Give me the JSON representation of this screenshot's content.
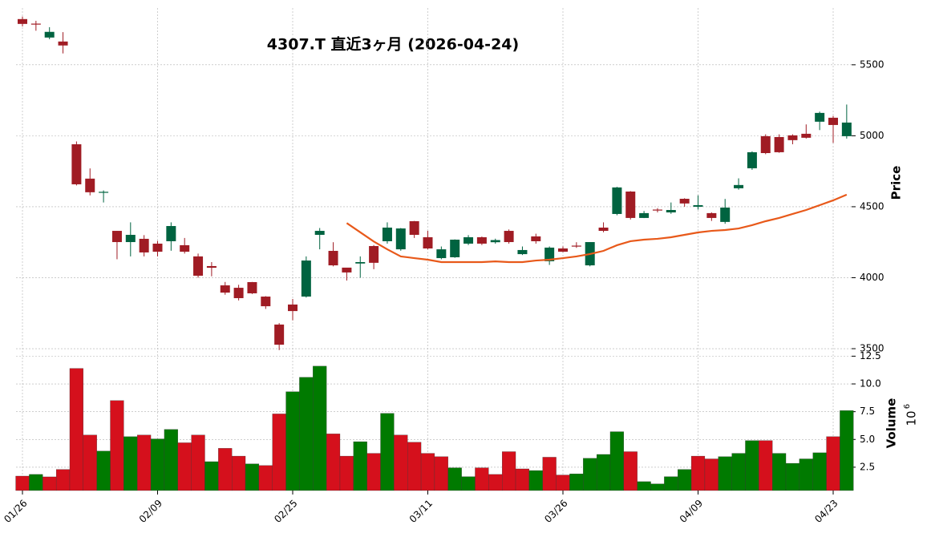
{
  "chart_data": {
    "type": "candlestick",
    "title": "4307.T  直近3ヶ月  (2026-04-24)",
    "y_label": "Price",
    "y2_label": "Volume",
    "y2_offset_base": "10",
    "y2_offset_exp": "6",
    "categories": [
      "01/26",
      null,
      null,
      null,
      null,
      null,
      null,
      null,
      null,
      null,
      "02/09",
      null,
      null,
      null,
      null,
      null,
      null,
      null,
      null,
      null,
      "02/25",
      null,
      null,
      null,
      null,
      null,
      null,
      null,
      null,
      null,
      "03/11",
      null,
      null,
      null,
      null,
      null,
      null,
      null,
      null,
      null,
      "03/26",
      null,
      null,
      null,
      null,
      null,
      null,
      null,
      null,
      null,
      "04/09",
      null,
      null,
      null,
      null,
      null,
      null,
      null,
      null,
      null,
      "04/23",
      null
    ],
    "open": [
      5822,
      5790,
      5692,
      5664,
      4940,
      4698,
      4600,
      4330,
      4251,
      4274,
      4240,
      4257,
      4229,
      4150,
      4082,
      3946,
      3929,
      3969,
      3867,
      3670,
      3811,
      3867,
      4302,
      4189,
      4071,
      4100,
      4223,
      4257,
      4200,
      4398,
      4285,
      4138,
      4144,
      4240,
      4285,
      4250,
      4330,
      4166,
      4291,
      4116,
      4206,
      4226,
      4087,
      4353,
      4449,
      4607,
      4421,
      4480,
      4460,
      4556,
      4500,
      4455,
      4393,
      4630,
      4771,
      4997,
      4991,
      5003,
      5014,
      5099,
      5127,
      4997
    ],
    "high": [
      5840,
      5810,
      5765,
      5730,
      4960,
      4770,
      4615,
      4330,
      4390,
      4300,
      4260,
      4390,
      4280,
      4170,
      4110,
      3970,
      3950,
      3970,
      3870,
      3680,
      3850,
      4150,
      4350,
      4250,
      4070,
      4150,
      4230,
      4390,
      4350,
      4400,
      4330,
      4220,
      4270,
      4300,
      4290,
      4275,
      4340,
      4220,
      4310,
      4220,
      4220,
      4250,
      4250,
      4390,
      4640,
      4610,
      4470,
      4490,
      4530,
      4560,
      4580,
      4460,
      4555,
      4700,
      4890,
      5010,
      5010,
      5010,
      5080,
      5170,
      5140,
      5220
    ],
    "low": [
      5770,
      5740,
      5680,
      5580,
      4650,
      4580,
      4530,
      4130,
      4150,
      4150,
      4150,
      4190,
      4170,
      4000,
      4010,
      3880,
      3840,
      3885,
      3780,
      3490,
      3700,
      3860,
      4200,
      4080,
      3980,
      4000,
      4060,
      4240,
      4190,
      4280,
      4200,
      4130,
      4140,
      4230,
      4230,
      4240,
      4240,
      4160,
      4240,
      4090,
      4180,
      4210,
      4080,
      4320,
      4440,
      4410,
      4420,
      4460,
      4450,
      4500,
      4480,
      4400,
      4380,
      4620,
      4760,
      4870,
      4880,
      4940,
      4980,
      5040,
      4950,
      4980
    ],
    "close": [
      5788,
      5785,
      5732,
      5636,
      4658,
      4602,
      4605,
      4251,
      4302,
      4178,
      4183,
      4364,
      4183,
      4014,
      4070,
      3895,
      3856,
      3890,
      3799,
      3528,
      3765,
      4121,
      4330,
      4087,
      4037,
      4110,
      4105,
      4353,
      4347,
      4302,
      4206,
      4200,
      4268,
      4285,
      4240,
      4265,
      4251,
      4195,
      4257,
      4212,
      4183,
      4220,
      4251,
      4330,
      4636,
      4421,
      4455,
      4475,
      4477,
      4523,
      4511,
      4421,
      4494,
      4653,
      4884,
      4878,
      4884,
      4969,
      4986,
      5161,
      5076,
      5093
    ],
    "ma": [
      null,
      null,
      null,
      null,
      null,
      null,
      null,
      null,
      null,
      null,
      null,
      null,
      null,
      null,
      null,
      null,
      null,
      null,
      null,
      null,
      null,
      null,
      null,
      null,
      4385,
      4320,
      4255,
      4200,
      4150,
      4138,
      4127,
      4110,
      4110,
      4110,
      4110,
      4115,
      4110,
      4110,
      4121,
      4127,
      4138,
      4150,
      4167,
      4189,
      4229,
      4257,
      4268,
      4274,
      4285,
      4302,
      4319,
      4330,
      4336,
      4347,
      4370,
      4398,
      4421,
      4449,
      4477,
      4511,
      4545,
      4585
    ],
    "ma_color": "#e8591a",
    "volume": [
      1.7,
      1.85,
      1.63,
      2.3,
      11.4,
      5.4,
      3.95,
      8.5,
      5.25,
      5.4,
      5.05,
      5.9,
      4.7,
      5.4,
      3.0,
      4.2,
      3.5,
      2.8,
      2.65,
      7.3,
      9.3,
      10.6,
      11.6,
      5.5,
      3.5,
      4.8,
      3.75,
      7.35,
      5.4,
      4.75,
      3.75,
      3.45,
      2.45,
      1.65,
      2.45,
      1.85,
      3.9,
      2.35,
      2.2,
      3.4,
      1.8,
      1.9,
      3.3,
      3.65,
      5.7,
      3.9,
      1.2,
      1.0,
      1.65,
      2.3,
      3.5,
      3.25,
      3.45,
      3.75,
      4.9,
      4.9,
      3.75,
      2.85,
      3.25,
      3.8,
      5.25,
      7.6
    ],
    "volume_up": [
      0,
      1,
      0,
      0,
      0,
      0,
      1,
      0,
      1,
      0,
      1,
      1,
      0,
      0,
      1,
      0,
      0,
      1,
      0,
      0,
      1,
      1,
      1,
      0,
      0,
      1,
      0,
      1,
      0,
      0,
      0,
      0,
      1,
      1,
      0,
      0,
      0,
      0,
      1,
      0,
      0,
      1,
      1,
      1,
      1,
      0,
      1,
      1,
      1,
      1,
      0,
      0,
      1,
      1,
      1,
      0,
      1,
      1,
      1,
      1,
      0,
      1
    ],
    "up_color": "#006340",
    "down_color": "#a01c24",
    "vol_up_color": "#007a00",
    "vol_down_color": "#d5101c",
    "ylim": [
      3455,
      5900
    ],
    "yticks": [
      3500,
      4000,
      4500,
      5000,
      5500
    ],
    "y2lim": [
      0.4,
      12.6
    ],
    "y2ticks": [
      2.5,
      {
        "value": 5,
        "label": "5.0"
      },
      7.5,
      {
        "value": 10,
        "label": "10.0"
      },
      12.5
    ],
    "grid": true
  }
}
